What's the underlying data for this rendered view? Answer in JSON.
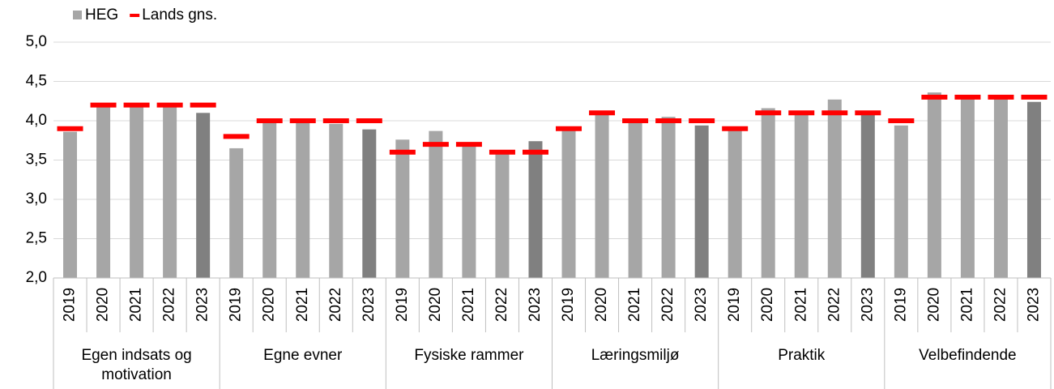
{
  "chart_data": {
    "type": "bar",
    "legend": "top-left",
    "grid": true,
    "groups": [
      "Egen indsats og motivation",
      "Egne evner",
      "Fysiske rammer",
      "Læringsmiljø",
      "Praktik",
      "Velbefindende"
    ],
    "categories": [
      "2019",
      "2020",
      "2021",
      "2022",
      "2023",
      "2019",
      "2020",
      "2021",
      "2022",
      "2023",
      "2019",
      "2020",
      "2021",
      "2022",
      "2023",
      "2019",
      "2020",
      "2021",
      "2022",
      "2023",
      "2019",
      "2020",
      "2021",
      "2022",
      "2023",
      "2019",
      "2020",
      "2021",
      "2022",
      "2023"
    ],
    "series": [
      {
        "name": "HEG",
        "color": "#a6a6a6",
        "colors": [
          "#a6a6a6",
          "#a6a6a6",
          "#a6a6a6",
          "#a6a6a6",
          "#808080",
          "#a6a6a6",
          "#a6a6a6",
          "#a6a6a6",
          "#a6a6a6",
          "#808080",
          "#a6a6a6",
          "#a6a6a6",
          "#a6a6a6",
          "#a6a6a6",
          "#808080",
          "#a6a6a6",
          "#a6a6a6",
          "#a6a6a6",
          "#a6a6a6",
          "#808080",
          "#a6a6a6",
          "#a6a6a6",
          "#a6a6a6",
          "#a6a6a6",
          "#808080",
          "#a6a6a6",
          "#a6a6a6",
          "#a6a6a6",
          "#a6a6a6",
          "#808080"
        ],
        "values": [
          3.86,
          4.18,
          4.19,
          4.17,
          4.1,
          3.65,
          4.0,
          4.0,
          3.96,
          3.89,
          3.76,
          3.87,
          3.7,
          3.59,
          3.74,
          3.88,
          4.1,
          4.0,
          4.05,
          3.94,
          3.88,
          4.16,
          4.1,
          4.27,
          4.1,
          3.94,
          4.36,
          4.3,
          4.3,
          4.24
        ]
      },
      {
        "name": "Lands gns.",
        "color": "#ff0000",
        "marker": "dash",
        "values": [
          3.9,
          4.2,
          4.2,
          4.2,
          4.2,
          3.8,
          4.0,
          4.0,
          4.0,
          4.0,
          3.6,
          3.7,
          3.7,
          3.6,
          3.6,
          3.9,
          4.1,
          4.0,
          4.0,
          4.0,
          3.9,
          4.1,
          4.1,
          4.1,
          4.1,
          4.0,
          4.3,
          4.3,
          4.3,
          4.3
        ]
      }
    ],
    "ylim": [
      2,
      5
    ],
    "yticks": [
      {
        "value": 2,
        "label": "2,0"
      },
      {
        "value": 2.5,
        "label": "2,5"
      },
      {
        "value": 3,
        "label": "3,0"
      },
      {
        "value": 3.5,
        "label": "3,5"
      },
      {
        "value": 4,
        "label": "4,0"
      },
      {
        "value": 4.5,
        "label": "4,5"
      },
      {
        "value": 5,
        "label": "5,0"
      }
    ]
  }
}
